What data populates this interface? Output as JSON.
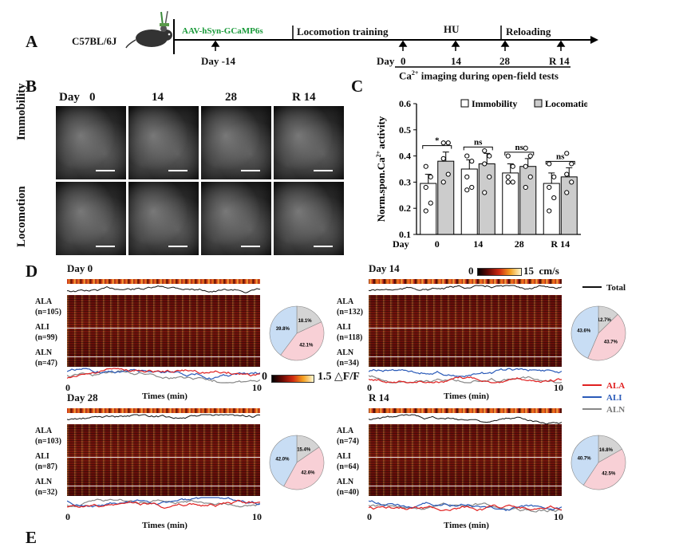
{
  "panel_A": {
    "letter": "A",
    "mouse_label": "C57BL/6J",
    "injection_label": "AAV-hSyn-GCaMP6s",
    "injection_color": "#1a9a3a",
    "training_label": "Locomotion training",
    "hu_label": "HU",
    "reloading_label": "Reloading",
    "day_minus": "Day -14",
    "day_word": "Day",
    "ticks": [
      "0",
      "14",
      "28",
      "R 14"
    ],
    "imaging_label_pre": "Ca",
    "imaging_label_sup": "2+",
    "imaging_label_post": " imaging during  open-field tests"
  },
  "panel_B": {
    "letter": "B",
    "day_word": "Day",
    "columns": [
      "0",
      "14",
      "28",
      "R 14"
    ],
    "rows": [
      "Immobility",
      "Locomotion"
    ]
  },
  "panel_C": {
    "letter": "C",
    "chart_data": {
      "type": "bar",
      "categories": [
        "0",
        "14",
        "28",
        "R 14"
      ],
      "xlabel_prefix": "Day",
      "ylabel_pre": "Norm.spon.Ca",
      "ylabel_sup": "2+",
      "ylabel_post": "activity",
      "ylim": [
        0.1,
        0.6
      ],
      "yticks": [
        "0.1",
        "0.2",
        "0.3",
        "0.4",
        "0.5",
        "0.6"
      ],
      "series": [
        {
          "name": "Immobility",
          "color": "#ffffff",
          "values": [
            0.295,
            0.35,
            0.335,
            0.295
          ],
          "errors": [
            0.035,
            0.035,
            0.035,
            0.04
          ],
          "points": [
            [
              0.36,
              0.32,
              0.28,
              0.22,
              0.19
            ],
            [
              0.4,
              0.38,
              0.32,
              0.28,
              0.27
            ],
            [
              0.4,
              0.36,
              0.32,
              0.3,
              0.3
            ],
            [
              0.37,
              0.32,
              0.28,
              0.24,
              0.19
            ]
          ]
        },
        {
          "name": "Locomation",
          "color": "#cccccc",
          "values": [
            0.38,
            0.37,
            0.36,
            0.32
          ],
          "errors": [
            0.035,
            0.04,
            0.03,
            0.035
          ],
          "points": [
            [
              0.45,
              0.45,
              0.39,
              0.33,
              0.3
            ],
            [
              0.42,
              0.4,
              0.37,
              0.32,
              0.26
            ],
            [
              0.43,
              0.4,
              0.36,
              0.32,
              0.28
            ],
            [
              0.41,
              0.37,
              0.33,
              0.3,
              0.26
            ]
          ]
        }
      ],
      "significance": [
        "*",
        "ns",
        "ns",
        "ns"
      ]
    }
  },
  "panel_D": {
    "letter": "D",
    "speed_colorbar": {
      "min": "0",
      "max": "15",
      "unit": "cm/s"
    },
    "df_colorbar": {
      "min": "0",
      "max": "1.5",
      "unit": "△F/F"
    },
    "legend": [
      {
        "label": "Total",
        "color": "#111111"
      },
      {
        "label": "ALA",
        "color": "#e02020"
      },
      {
        "label": "ALI",
        "color": "#2a5ab8"
      },
      {
        "label": "ALN",
        "color": "#888888"
      }
    ],
    "pie_colors": {
      "ALA": "#f8d0d6",
      "ALI": "#c8ddf4",
      "ALN": "#d4d4d4"
    },
    "axis_start": "0",
    "axis_end": "10",
    "axis_label": "Times (min)",
    "subpanels": [
      {
        "title": "Day 0",
        "groups": [
          {
            "name": "ALA",
            "n": "(n=105)"
          },
          {
            "name": "ALI",
            "n": "(n=99)"
          },
          {
            "name": "ALN",
            "n": "(n=47)"
          }
        ],
        "pie": {
          "ALA": 42.1,
          "ALI": 39.8,
          "ALN": 18.1
        },
        "pie_labels": {
          "ALA": "42.1%",
          "ALI": "39.8%",
          "ALN": "18.1%"
        }
      },
      {
        "title": "Day 14",
        "groups": [
          {
            "name": "ALA",
            "n": "(n=132)"
          },
          {
            "name": "ALI",
            "n": "(n=118)"
          },
          {
            "name": "ALN",
            "n": "(n=34)"
          }
        ],
        "pie": {
          "ALA": 43.7,
          "ALI": 43.6,
          "ALN": 12.7
        },
        "pie_labels": {
          "ALA": "43.7%",
          "ALI": "43.6%",
          "ALN": "12.7%"
        }
      },
      {
        "title": "Day 28",
        "groups": [
          {
            "name": "ALA",
            "n": "(n=103)"
          },
          {
            "name": "ALI",
            "n": "(n=87)"
          },
          {
            "name": "ALN",
            "n": "(n=32)"
          }
        ],
        "pie": {
          "ALA": 42.6,
          "ALI": 42.0,
          "ALN": 15.4
        },
        "pie_labels": {
          "ALA": "42.6%",
          "ALI": "42.0%",
          "ALN": "15.4%"
        }
      },
      {
        "title": "R 14",
        "groups": [
          {
            "name": "ALA",
            "n": "(n=74)"
          },
          {
            "name": "ALI",
            "n": "(n=64)"
          },
          {
            "name": "ALN",
            "n": "(n=40)"
          }
        ],
        "pie": {
          "ALA": 42.5,
          "ALI": 40.7,
          "ALN": 16.8
        },
        "pie_labels": {
          "ALA": "42.5%",
          "ALI": "40.7%",
          "ALN": "16.8%"
        }
      }
    ]
  },
  "panel_E": {
    "letter": "E"
  }
}
